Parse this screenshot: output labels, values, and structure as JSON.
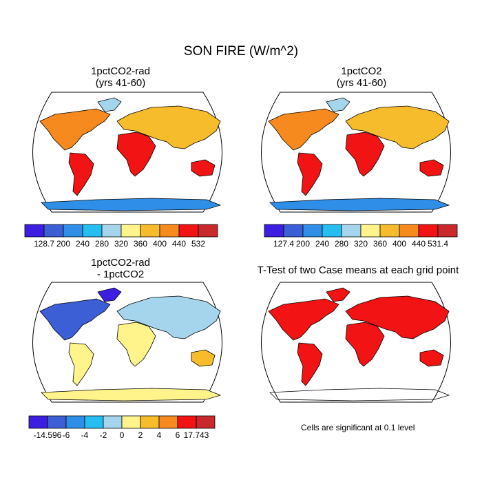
{
  "main_title": "SON FIRE (W/m^2)",
  "panels": [
    {
      "id": "a",
      "title_line1": "1pctCO2-rad",
      "title_line2": "(yrs 41-60)",
      "field": "absolute"
    },
    {
      "id": "b",
      "title_line1": "1pctCO2",
      "title_line2": "(yrs 41-60)",
      "field": "absolute"
    },
    {
      "id": "c",
      "title_line1": "1pctCO2-rad",
      "title_line2": "- 1pctCO2",
      "field": "difference"
    },
    {
      "id": "d",
      "title_line1": "T-Test of two Case means at each grid point",
      "title_line2": "",
      "field": "significance"
    }
  ],
  "colorbars": {
    "a": {
      "colors": [
        "#3b1ee0",
        "#3c5fd6",
        "#2f8fe8",
        "#26bdf0",
        "#a5d5ec",
        "#fff48c",
        "#f6bc2c",
        "#f68a1e",
        "#f21414",
        "#c9282c"
      ],
      "labels": [
        "128.7",
        "200",
        "240",
        "280",
        "320",
        "360",
        "400",
        "440",
        "532"
      ]
    },
    "b": {
      "colors": [
        "#3b1ee0",
        "#3c5fd6",
        "#2f8fe8",
        "#26bdf0",
        "#a5d5ec",
        "#fff48c",
        "#f6bc2c",
        "#f68a1e",
        "#f21414",
        "#c9282c"
      ],
      "labels": [
        "127.4",
        "200",
        "240",
        "280",
        "320",
        "360",
        "400",
        "440",
        "531.4"
      ]
    },
    "c": {
      "colors": [
        "#3b1ee0",
        "#3c5fd6",
        "#2f8fe8",
        "#26bdf0",
        "#a5d5ec",
        "#fff48c",
        "#f6bc2c",
        "#f68a1e",
        "#f21414",
        "#c9282c"
      ],
      "labels": [
        "-14.596",
        "-6",
        "-4",
        "-2",
        "0",
        "2",
        "4",
        "6",
        "17.743"
      ]
    }
  },
  "significance_note": "Cells are significant at 0.1 level",
  "significance_color": "#f21414"
}
